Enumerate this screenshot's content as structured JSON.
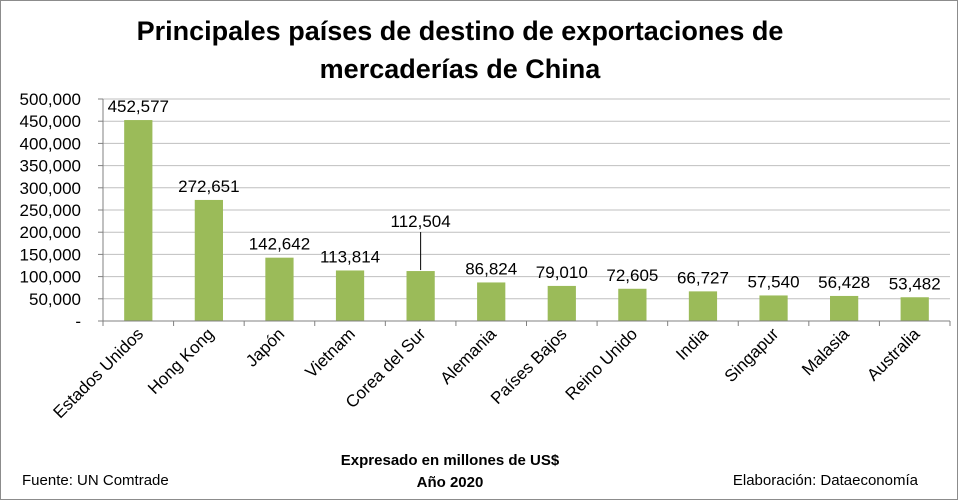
{
  "title_line1": "Principales países de destino de exportaciones de",
  "title_line2": "mercaderías de China",
  "subtitle_line1": "Expresado en millones de US$",
  "subtitle_line2": "Año 2020",
  "source": "Fuente:  UN Comtrade",
  "credit": "Elaboración: Dataeconomía",
  "colors": {
    "bar": "#9bbb59",
    "grid": "#bfbfbf",
    "axis": "#808080"
  },
  "chart_data": {
    "type": "bar",
    "title": "Principales países de destino de exportaciones de mercaderías de China",
    "categories": [
      "Estados Unidos",
      "Hong Kong",
      "Japón",
      "Vietnam",
      "Corea del Sur",
      "Alemania",
      "Países Bajos",
      "Reino Unido",
      "India",
      "Singapur",
      "Malasia",
      "Australia"
    ],
    "values": [
      452577,
      272651,
      142642,
      113814,
      112504,
      86824,
      79010,
      72605,
      66727,
      57540,
      56428,
      53482
    ],
    "value_labels": [
      "452,577",
      "272,651",
      "142,642",
      "113,814",
      "112,504",
      "86,824",
      "79,010",
      "72,605",
      "66,727",
      "57,540",
      "56,428",
      "53,482"
    ],
    "yticks": [
      "-",
      "50,000",
      "100,000",
      "150,000",
      "200,000",
      "250,000",
      "300,000",
      "350,000",
      "400,000",
      "450,000",
      "500,000"
    ],
    "ylim": [
      0,
      500000
    ],
    "grid": true,
    "legend": "none"
  }
}
